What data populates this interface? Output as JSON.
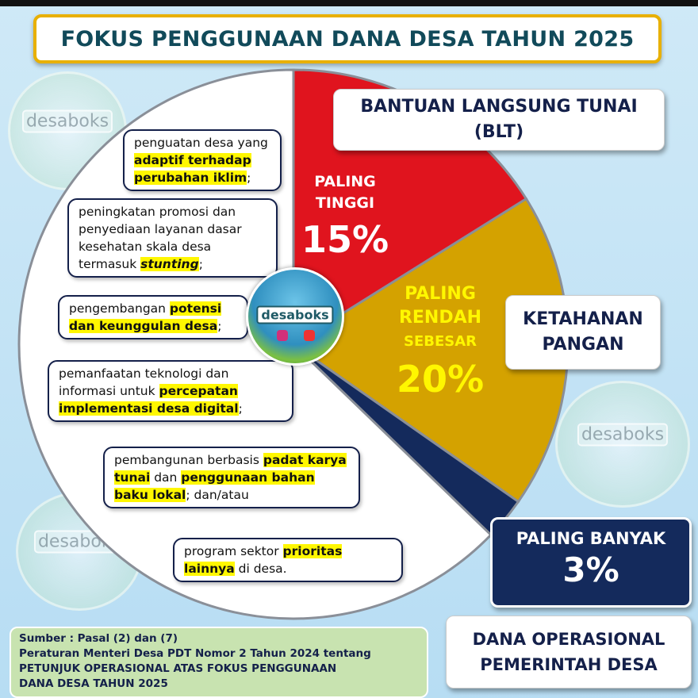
{
  "title": "FOKUS PENGGUNAAN DANA DESA TAHUN 2025",
  "watermark": "desaboks",
  "colors": {
    "blt": "#e0141e",
    "pangan": "#d4a200",
    "operasional": "#142a5c",
    "lainnya": "#ffffff",
    "highlight": "#fff700"
  },
  "chart_data": {
    "type": "pie",
    "categories": [
      "BANTUAN LANGSUNG TUNAI (BLT)",
      "KETAHANAN PANGAN",
      "DANA OPERASIONAL PEMERINTAH DESA",
      ""
    ],
    "values": [
      15,
      20,
      3,
      null
    ],
    "slice_labels": [
      {
        "lines": [
          "PALING",
          "TINGGI"
        ],
        "value": "15%"
      },
      {
        "lines": [
          "PALING",
          "RENDAH",
          "SEBESAR"
        ],
        "value": "20%"
      },
      {
        "lines": [
          "PALING BANYAK"
        ],
        "value": "3%"
      }
    ]
  },
  "categories": {
    "blt": [
      "BANTUAN LANGSUNG TUNAI",
      "(BLT)"
    ],
    "pangan": [
      "KETAHANAN",
      "PANGAN"
    ],
    "operasional": [
      "DANA OPERASIONAL",
      "PEMERINTAH DESA"
    ]
  },
  "items": [
    [
      {
        "t": "penguatan desa yang "
      },
      {
        "t": "adaptif terhadap perubahan iklim",
        "hl": true
      },
      {
        "t": ";"
      }
    ],
    [
      {
        "t": "peningkatan promosi dan penyediaan layanan dasar kesehatan skala desa termasuk "
      },
      {
        "t": "stunting",
        "hl": true,
        "it": true
      },
      {
        "t": ";"
      }
    ],
    [
      {
        "t": "pengembangan "
      },
      {
        "t": "potensi dan keunggulan desa",
        "hl": true
      },
      {
        "t": ";"
      }
    ],
    [
      {
        "t": "pemanfaatan teknologi dan informasi untuk "
      },
      {
        "t": "percepatan implementasi desa digital",
        "hl": true
      },
      {
        "t": ";"
      }
    ],
    [
      {
        "t": "pembangunan berbasis "
      },
      {
        "t": "padat karya tunai",
        "hl": true
      },
      {
        "t": " dan "
      },
      {
        "t": "penggunaan bahan baku lokal",
        "hl": true
      },
      {
        "t": "; dan/atau"
      }
    ],
    [
      {
        "t": "program sektor "
      },
      {
        "t": "prioritas lainnya",
        "hl": true
      },
      {
        "t": " di desa."
      }
    ]
  ],
  "source": [
    "Sumber : Pasal (2) dan (7)",
    "Peraturan Menteri Desa PDT Nomor 2 Tahun 2024 tentang",
    "PETUNJUK OPERASIONAL ATAS FOKUS PENGGUNAAN",
    "DANA DESA TAHUN 2025"
  ]
}
